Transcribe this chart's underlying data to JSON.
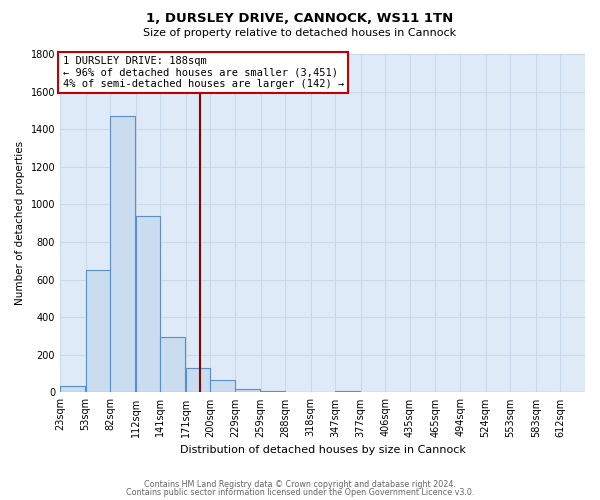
{
  "title": "1, DURSLEY DRIVE, CANNOCK, WS11 1TN",
  "subtitle": "Size of property relative to detached houses in Cannock",
  "xlabel": "Distribution of detached houses by size in Cannock",
  "ylabel": "Number of detached properties",
  "bar_labels": [
    "23sqm",
    "53sqm",
    "82sqm",
    "112sqm",
    "141sqm",
    "171sqm",
    "200sqm",
    "229sqm",
    "259sqm",
    "288sqm",
    "318sqm",
    "347sqm",
    "377sqm",
    "406sqm",
    "435sqm",
    "465sqm",
    "494sqm",
    "524sqm",
    "553sqm",
    "583sqm",
    "612sqm"
  ],
  "bar_values": [
    35,
    650,
    1470,
    940,
    295,
    130,
    65,
    20,
    5,
    0,
    0,
    10,
    0,
    0,
    0,
    0,
    0,
    0,
    0,
    0,
    0
  ],
  "bar_color": "#c9dcf0",
  "bar_edge_color": "#5b8fc7",
  "ylim": [
    0,
    1800
  ],
  "yticks": [
    0,
    200,
    400,
    600,
    800,
    1000,
    1200,
    1400,
    1600,
    1800
  ],
  "property_line_color": "#8b0000",
  "annotation_line0": "1 DURSLEY DRIVE: 188sqm",
  "annotation_line1": "← 96% of detached houses are smaller (3,451)",
  "annotation_line2": "4% of semi-detached houses are larger (142) →",
  "annotation_box_edge": "#c00000",
  "footer_line1": "Contains HM Land Registry data © Crown copyright and database right 2024.",
  "footer_line2": "Contains public sector information licensed under the Open Government Licence v3.0.",
  "background_color": "#ffffff",
  "grid_color": "#c8d8e8",
  "bin_width": 29,
  "property_sqm": 188
}
